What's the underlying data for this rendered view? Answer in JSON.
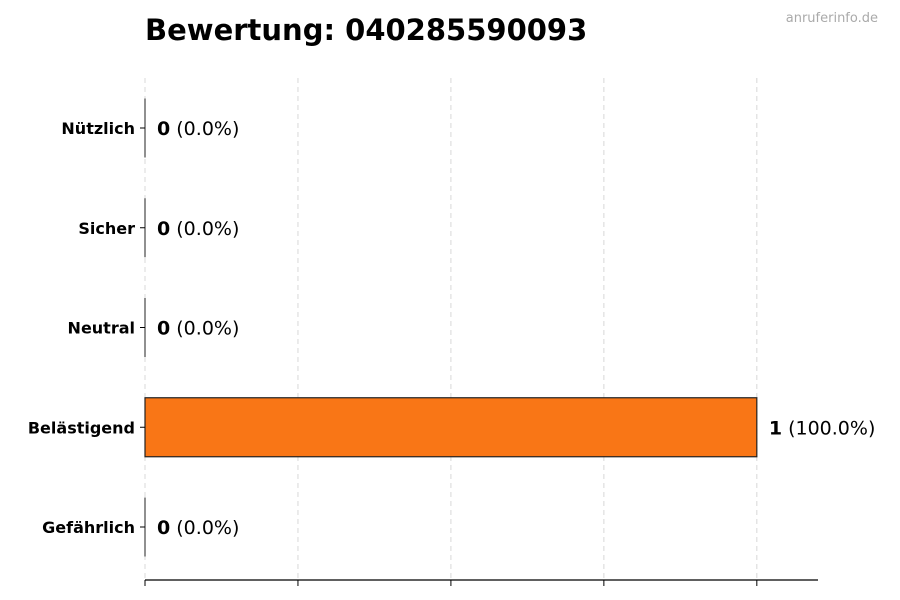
{
  "chart_data": {
    "type": "bar",
    "orientation": "horizontal",
    "title": "Bewertung: 040285590093",
    "categories": [
      "Nützlich",
      "Sicher",
      "Neutral",
      "Belästigend",
      "Gefährlich"
    ],
    "values": [
      0,
      0,
      0,
      1,
      0
    ],
    "percent_labels": [
      "(0.0%)",
      "(0.0%)",
      "(0.0%)",
      "(100.0%)",
      "(0.0%)"
    ],
    "xlim": [
      0,
      1.1
    ],
    "xticks": [
      0,
      0.25,
      0.5,
      0.75,
      1.0
    ],
    "grid": "vertical dashed",
    "bar_color": "#f97616",
    "edge_color": "#222222"
  },
  "watermark": "anruferinfo.de"
}
